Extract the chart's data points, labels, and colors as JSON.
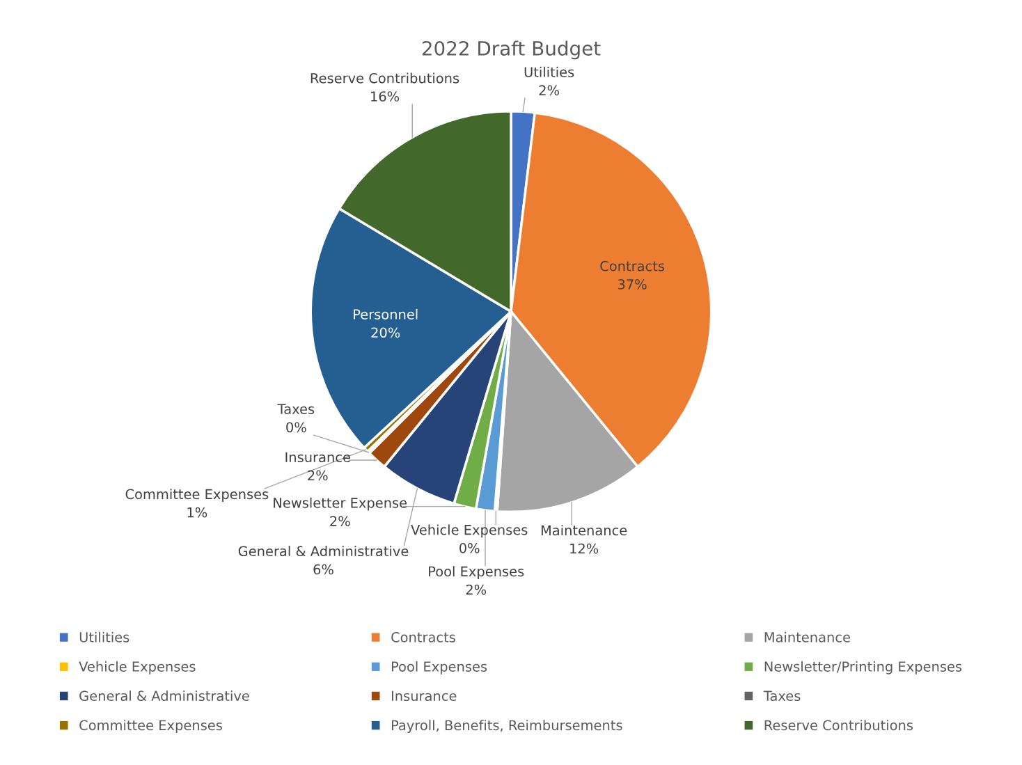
{
  "chart_data": {
    "type": "pie",
    "title": "2022 Draft Budget",
    "categories": [
      "Utilities",
      "Contracts",
      "Maintenance",
      "Vehicle Expenses",
      "Pool Expenses",
      "Newsletter/Printing Expenses",
      "General & Administrative",
      "Insurance",
      "Taxes",
      "Committee Expenses",
      "Payroll, Benefits, Reimbursements",
      "Reserve Contributions"
    ],
    "values": [
      1.9,
      37.2,
      12,
      0.2,
      1.5,
      1.8,
      6.3,
      1.6,
      0.2,
      0.4,
      20.5,
      16.4
    ],
    "colors": [
      "#4472c4",
      "#ed7d31",
      "#a5a5a5",
      "#ffc000",
      "#5b9bd5",
      "#70ad47",
      "#264478",
      "#9e480e",
      "#636363",
      "#997300",
      "#255e91",
      "#43682b"
    ],
    "value_labels": [
      "Utilities\n2%",
      "Contracts\n37%",
      "Maintenance\n12%",
      "Vehicle Expenses\n0%",
      "Pool Expenses\n2%",
      "Newsletter Expense\n2%",
      "General & Administrative\n6%",
      "Insurance\n2%",
      "Taxes\n0%",
      "Committee Expenses\n1%",
      "Personnel\n20%",
      "Reserve Contributions\n16%"
    ],
    "legend": "bottom"
  }
}
